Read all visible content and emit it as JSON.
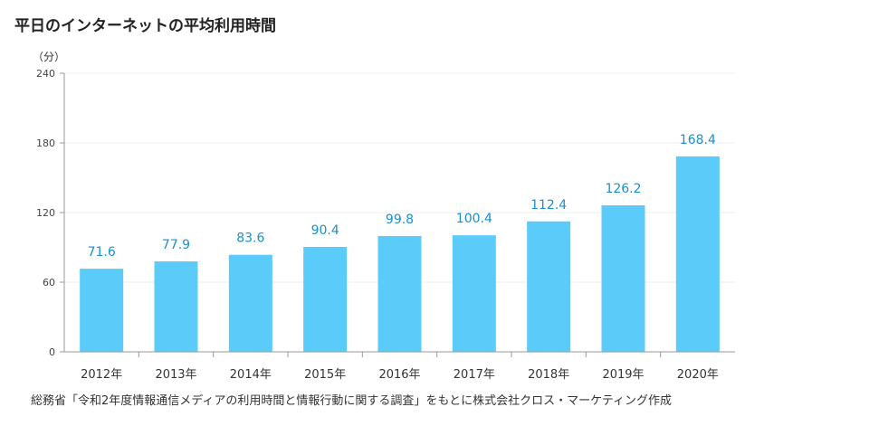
{
  "header": {
    "title": "平日のインターネットの平均利用時間"
  },
  "footer": {
    "source": "総務省「令和2年度情報通信メディアの利用時間と情報行動に関する調査」をもとに株式会社クロス・マーケティング作成"
  },
  "colors": {
    "bar": "#5bcbfa",
    "label": "#1a8fd0",
    "grid": "#ececec",
    "axis": "#999999"
  },
  "chart_data": {
    "type": "bar",
    "title": "平日のインターネットの平均利用時間",
    "unit_label": "（分）",
    "xlabel": "",
    "ylabel": "（分）",
    "categories": [
      "2012年",
      "2013年",
      "2014年",
      "2015年",
      "2016年",
      "2017年",
      "2018年",
      "2019年",
      "2020年"
    ],
    "values": [
      71.6,
      77.9,
      83.6,
      90.4,
      99.8,
      100.4,
      112.4,
      126.2,
      168.4
    ],
    "value_labels": [
      "71.6",
      "77.9",
      "83.6",
      "90.4",
      "99.8",
      "100.4",
      "112.4",
      "126.2",
      "168.4"
    ],
    "ylim": [
      0,
      240
    ],
    "yticks": [
      0,
      60,
      120,
      180,
      240
    ],
    "grid": true,
    "legend": "none"
  }
}
